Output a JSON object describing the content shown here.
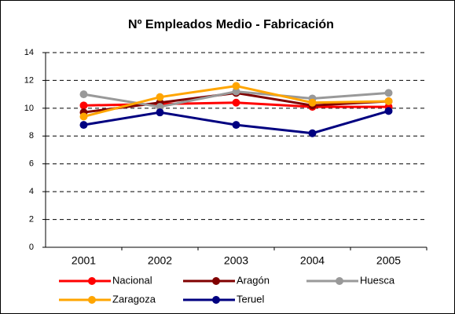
{
  "chart_data": {
    "type": "line",
    "title": "Nº Empleados Medio - Fabricación",
    "categories": [
      "2001",
      "2002",
      "2003",
      "2004",
      "2005"
    ],
    "series": [
      {
        "name": "Nacional",
        "color": "#ff0000",
        "values": [
          10.2,
          10.3,
          10.4,
          10.1,
          10.1
        ]
      },
      {
        "name": "Aragón",
        "color": "#800000",
        "values": [
          9.7,
          10.4,
          11.1,
          10.2,
          10.5
        ]
      },
      {
        "name": "Huesca",
        "color": "#999999",
        "values": [
          11.0,
          10.1,
          11.2,
          10.7,
          11.1
        ]
      },
      {
        "name": "Zaragoza",
        "color": "#ffa500",
        "values": [
          9.4,
          10.8,
          11.6,
          10.4,
          10.5
        ]
      },
      {
        "name": "Teruel",
        "color": "#000080",
        "values": [
          8.8,
          9.7,
          8.8,
          8.2,
          9.8
        ]
      }
    ],
    "ylim": [
      0,
      14
    ],
    "yticks": [
      0,
      2,
      4,
      6,
      8,
      10,
      12,
      14
    ],
    "grid": true
  }
}
